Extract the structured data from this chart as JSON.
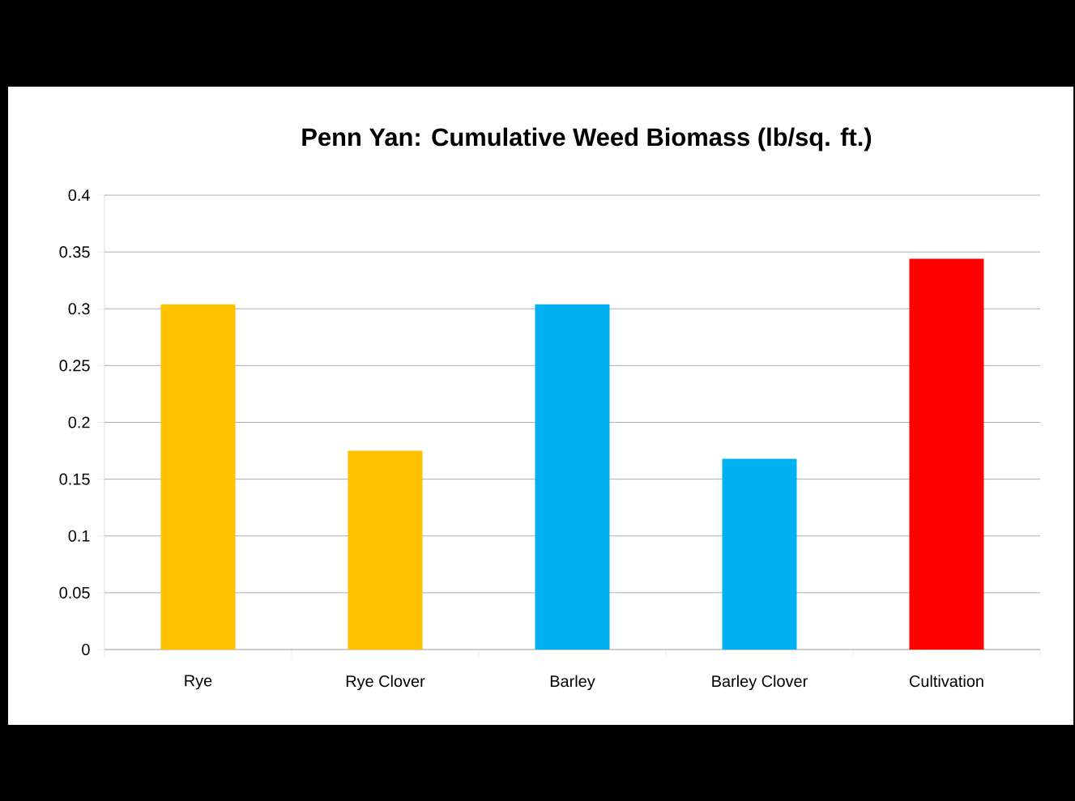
{
  "chart_data": {
    "type": "bar",
    "title": "Penn Yan: Cumulative Weed Biomass (lb/sq. ft.)",
    "categories": [
      "Rye",
      "Rye Clover",
      "Barley",
      "Barley Clover",
      "Cultivation"
    ],
    "values": [
      0.304,
      0.175,
      0.304,
      0.168,
      0.344
    ],
    "colors": [
      "#ffc000",
      "#ffc000",
      "#00b0f0",
      "#00b0f0",
      "#ff0000"
    ],
    "ylim": [
      0,
      0.4
    ],
    "yticks": [
      0,
      0.05,
      0.1,
      0.15,
      0.2,
      0.25,
      0.3,
      0.35,
      0.4
    ],
    "grid": "y"
  }
}
